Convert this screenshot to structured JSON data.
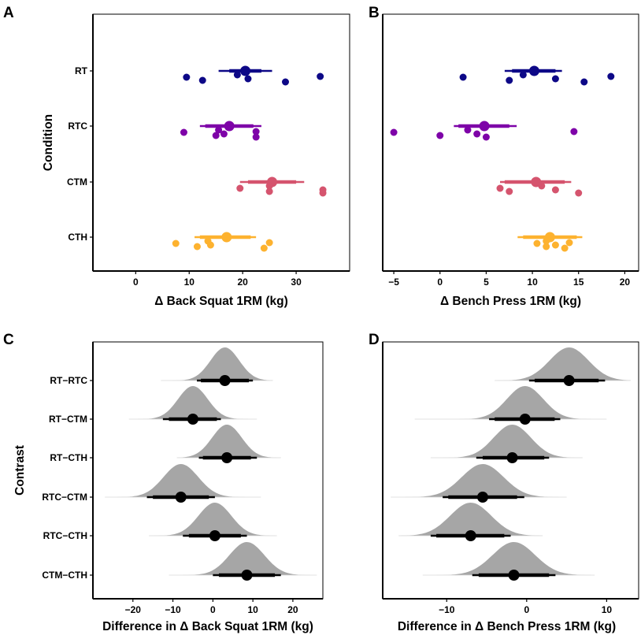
{
  "chart_data": [
    {
      "panel": "A",
      "type": "scatter",
      "subtype": "dot-interval",
      "xlabel": "Δ  Back Squat 1RM (kg)",
      "ylabel": "Condition",
      "xlim": [
        -8,
        40
      ],
      "xticks": [
        0,
        10,
        20,
        30
      ],
      "xtick_labels": [
        "0",
        "10",
        "20",
        "30"
      ],
      "categories": [
        "RT",
        "RTC",
        "CTM",
        "CTH"
      ],
      "grid": false,
      "series": [
        {
          "name": "RT",
          "color": "#0d0887",
          "median": 20.5,
          "interval_66": [
            17.5,
            23.5
          ],
          "interval_95": [
            15.5,
            25.5
          ],
          "points": [
            9.5,
            12.5,
            19.0,
            21.0,
            28.0,
            34.5
          ]
        },
        {
          "name": "RTC",
          "color": "#7e03a8",
          "median": 17.5,
          "interval_66": [
            13.0,
            22.0
          ],
          "interval_95": [
            12.0,
            23.5
          ],
          "points": [
            9.0,
            15.0,
            15.5,
            16.5,
            22.5,
            22.5
          ]
        },
        {
          "name": "CTM",
          "color": "#d5546e",
          "median": 25.5,
          "interval_66": [
            21.0,
            30.0
          ],
          "interval_95": [
            19.5,
            31.5
          ],
          "points": [
            19.5,
            25.0,
            25.0,
            35.0,
            35.0
          ]
        },
        {
          "name": "CTH",
          "color": "#fdb22f",
          "median": 17.0,
          "interval_66": [
            12.0,
            21.5
          ],
          "interval_95": [
            11.0,
            22.5
          ],
          "points": [
            7.5,
            11.5,
            13.5,
            14.0,
            24.0,
            25.0
          ]
        }
      ]
    },
    {
      "panel": "B",
      "type": "scatter",
      "subtype": "dot-interval",
      "xlabel": "Δ  Bench Press 1RM (kg)",
      "ylabel": "",
      "xlim": [
        -6.2,
        21.5
      ],
      "xticks": [
        -5,
        0,
        5,
        10,
        15,
        20
      ],
      "xtick_labels": [
        "−5",
        "0",
        "5",
        "10",
        "15",
        "20"
      ],
      "categories": [
        "RT",
        "RTC",
        "CTM",
        "CTH"
      ],
      "grid": false,
      "series": [
        {
          "name": "RT",
          "color": "#0d0887",
          "median": 10.2,
          "interval_66": [
            7.8,
            12.5
          ],
          "interval_95": [
            7.0,
            13.2
          ],
          "points": [
            2.5,
            7.5,
            9.0,
            12.5,
            15.6,
            18.5
          ]
        },
        {
          "name": "RTC",
          "color": "#7e03a8",
          "median": 4.8,
          "interval_66": [
            2.0,
            7.5
          ],
          "interval_95": [
            1.5,
            8.3
          ],
          "points": [
            -5.0,
            0.0,
            3.0,
            4.0,
            5.0,
            14.5
          ]
        },
        {
          "name": "CTM",
          "color": "#d5546e",
          "median": 10.4,
          "interval_66": [
            7.0,
            13.5
          ],
          "interval_95": [
            6.5,
            14.2
          ],
          "points": [
            6.5,
            7.5,
            11.0,
            12.5,
            15.0
          ]
        },
        {
          "name": "CTH",
          "color": "#fdb22f",
          "median": 11.9,
          "interval_66": [
            9.0,
            14.8
          ],
          "interval_95": [
            8.4,
            15.4
          ],
          "points": [
            10.5,
            11.5,
            11.5,
            12.5,
            13.5,
            14.0
          ]
        }
      ]
    },
    {
      "panel": "C",
      "type": "area",
      "subtype": "halfeye",
      "xlabel": "Difference in  Δ  Back Squat 1RM (kg)",
      "ylabel": "Contrast",
      "xlim": [
        -30,
        27.5
      ],
      "xticks": [
        -20,
        -10,
        0,
        10,
        20
      ],
      "xtick_labels": [
        "−20",
        "−10",
        "0",
        "10",
        "20"
      ],
      "categories": [
        "RT−RTC",
        "RT−CTM",
        "RT−CTH",
        "RTC−CTM",
        "RTC−CTH",
        "CTM−CTH"
      ],
      "grid": false,
      "fill_color": "#a6a6a6",
      "series": [
        {
          "name": "RT−RTC",
          "median": 3.0,
          "interval_66": [
            -3.0,
            9.0
          ],
          "interval_95": [
            -4.0,
            10.0
          ],
          "range": [
            -13,
            15
          ]
        },
        {
          "name": "RT−CTM",
          "median": -5.0,
          "interval_66": [
            -11.0,
            1.0
          ],
          "interval_95": [
            -12.5,
            2.0
          ],
          "range": [
            -21,
            11
          ]
        },
        {
          "name": "RT−CTH",
          "median": 3.5,
          "interval_66": [
            -2.5,
            9.5
          ],
          "interval_95": [
            -3.5,
            11.0
          ],
          "range": [
            -9,
            17
          ]
        },
        {
          "name": "RTC−CTM",
          "median": -8.0,
          "interval_66": [
            -15.0,
            -1.0
          ],
          "interval_95": [
            -16.5,
            0.5
          ],
          "range": [
            -27,
            12
          ]
        },
        {
          "name": "RTC−CTH",
          "median": 0.5,
          "interval_66": [
            -6.0,
            7.0
          ],
          "interval_95": [
            -7.5,
            8.5
          ],
          "range": [
            -16,
            16
          ]
        },
        {
          "name": "CTM−CTH",
          "median": 8.5,
          "interval_66": [
            1.5,
            15.5
          ],
          "interval_95": [
            0.0,
            17.0
          ],
          "range": [
            -11,
            26
          ]
        }
      ]
    },
    {
      "panel": "D",
      "type": "area",
      "subtype": "halfeye",
      "xlabel": "Difference in  Δ  Bench Press 1RM (kg)",
      "ylabel": "",
      "xlim": [
        -18,
        14
      ],
      "xticks": [
        -10,
        0,
        10
      ],
      "xtick_labels": [
        "−10",
        "0",
        "10"
      ],
      "categories": [
        "RT−RTC",
        "RT−CTM",
        "RT−CTH",
        "RTC−CTM",
        "RTC−CTH",
        "CTM−CTH"
      ],
      "grid": false,
      "fill_color": "#a6a6a6",
      "series": [
        {
          "name": "RT−RTC",
          "median": 5.3,
          "interval_66": [
            1.0,
            9.0
          ],
          "interval_95": [
            0.3,
            9.8
          ],
          "range": [
            -4,
            13
          ]
        },
        {
          "name": "RT−CTM",
          "median": -0.2,
          "interval_66": [
            -4.0,
            3.5
          ],
          "interval_95": [
            -4.7,
            4.2
          ],
          "range": [
            -14,
            10
          ]
        },
        {
          "name": "RT−CTH",
          "median": -1.8,
          "interval_66": [
            -5.5,
            2.2
          ],
          "interval_95": [
            -6.3,
            2.8
          ],
          "range": [
            -12,
            7
          ]
        },
        {
          "name": "RTC−CTM",
          "median": -5.5,
          "interval_66": [
            -9.8,
            -1.2
          ],
          "interval_95": [
            -10.5,
            -0.3
          ],
          "range": [
            -17,
            5
          ]
        },
        {
          "name": "RTC−CTH",
          "median": -7.0,
          "interval_66": [
            -11.3,
            -2.8
          ],
          "interval_95": [
            -12.0,
            -2.0
          ],
          "range": [
            -16,
            2
          ]
        },
        {
          "name": "CTM−CTH",
          "median": -1.6,
          "interval_66": [
            -6.0,
            2.8
          ],
          "interval_95": [
            -6.8,
            3.6
          ],
          "range": [
            -13,
            8.5
          ]
        }
      ]
    }
  ]
}
